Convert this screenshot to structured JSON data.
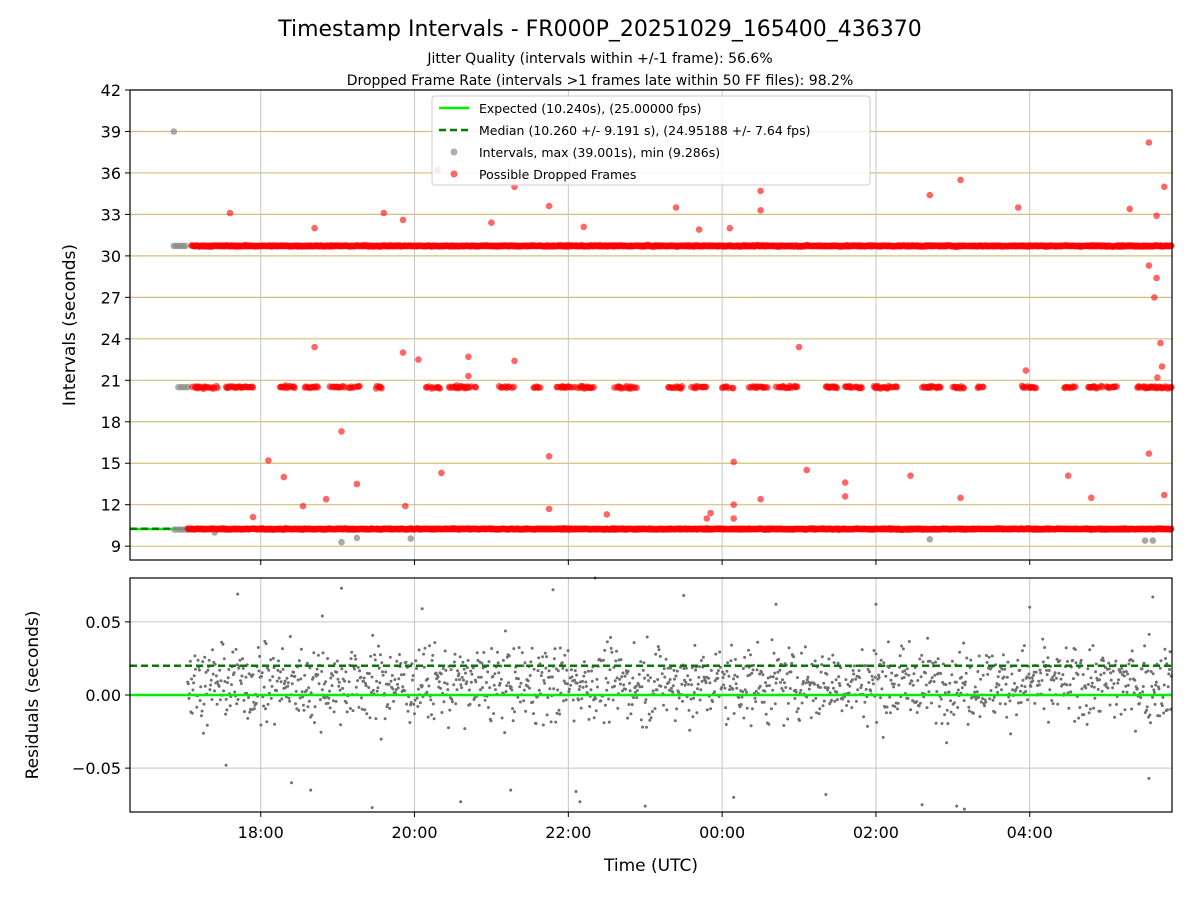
{
  "header": {
    "title": "Timestamp Intervals - FR000P_20251029_165400_436370",
    "subtitle_1": "Jitter Quality (intervals within +/-1 frame): 56.6%",
    "subtitle_2": "Dropped Frame Rate (intervals >1 frames late within 50 FF files): 98.2%"
  },
  "chart_data": [
    {
      "type": "scatter",
      "panel": "top",
      "ylabel": "Intervals (seconds)",
      "xlabel": "",
      "ylim": [
        8,
        42
      ],
      "xlim_hours": [
        16.3,
        29.85
      ],
      "yticks": [
        "9",
        "12",
        "15",
        "18",
        "21",
        "24",
        "27",
        "30",
        "33",
        "36",
        "39",
        "42"
      ],
      "ytick_values": [
        9,
        12,
        15,
        18,
        21,
        24,
        27,
        30,
        33,
        36,
        39,
        42
      ],
      "xtick_hours": [
        18,
        20,
        22,
        24,
        26,
        28
      ],
      "xtick_labels": [
        "18:00",
        "20:00",
        "22:00",
        "00:00",
        "02:00",
        "04:00"
      ],
      "horizontal_gridlines": "tan",
      "vertical_gridlines": true,
      "legend_position": "top-center",
      "legend": [
        "Expected (10.240s), (25.00000 fps)",
        "Median (10.260 +/- 9.191 s), (24.95188 +/- 7.64 fps)",
        "Intervals, max (39.001s), min (9.286s)",
        "Possible Dropped Frames"
      ],
      "expected_interval": 10.24,
      "median_interval": 10.26,
      "max_interval": 39.001,
      "min_interval": 9.286,
      "bands": {
        "base": 10.24,
        "double": 20.5,
        "triple": 30.72
      },
      "points_normal": [
        {
          "x": 16.87,
          "y": 39.0
        },
        {
          "x": 16.87,
          "y": 30.72
        },
        {
          "x": 16.9,
          "y": 30.72
        },
        {
          "x": 16.93,
          "y": 30.72
        },
        {
          "x": 16.96,
          "y": 30.72
        },
        {
          "x": 16.99,
          "y": 30.72
        },
        {
          "x": 17.02,
          "y": 30.72
        },
        {
          "x": 16.93,
          "y": 20.5
        },
        {
          "x": 16.97,
          "y": 20.5
        },
        {
          "x": 17.01,
          "y": 20.5
        },
        {
          "x": 17.05,
          "y": 20.5
        },
        {
          "x": 16.88,
          "y": 10.2
        },
        {
          "x": 16.93,
          "y": 10.2
        },
        {
          "x": 16.97,
          "y": 10.2
        },
        {
          "x": 17.01,
          "y": 10.2
        },
        {
          "x": 17.05,
          "y": 10.2
        },
        {
          "x": 19.05,
          "y": 9.29
        },
        {
          "x": 19.25,
          "y": 9.6
        },
        {
          "x": 19.95,
          "y": 9.55
        },
        {
          "x": 26.7,
          "y": 9.5
        },
        {
          "x": 29.5,
          "y": 9.4
        },
        {
          "x": 29.6,
          "y": 9.4
        },
        {
          "x": 17.4,
          "y": 10.0
        }
      ],
      "points_dropped": [
        {
          "x": 17.6,
          "y": 33.1
        },
        {
          "x": 18.7,
          "y": 32.0
        },
        {
          "x": 19.6,
          "y": 33.1
        },
        {
          "x": 19.85,
          "y": 32.6
        },
        {
          "x": 20.3,
          "y": 36.2
        },
        {
          "x": 21.0,
          "y": 32.4
        },
        {
          "x": 21.3,
          "y": 35.0
        },
        {
          "x": 21.75,
          "y": 33.6
        },
        {
          "x": 22.2,
          "y": 32.1
        },
        {
          "x": 23.4,
          "y": 33.5
        },
        {
          "x": 23.7,
          "y": 31.9
        },
        {
          "x": 24.1,
          "y": 32.0
        },
        {
          "x": 24.5,
          "y": 34.7
        },
        {
          "x": 24.5,
          "y": 33.3
        },
        {
          "x": 26.7,
          "y": 34.4
        },
        {
          "x": 27.1,
          "y": 35.5
        },
        {
          "x": 27.85,
          "y": 33.5
        },
        {
          "x": 29.3,
          "y": 33.4
        },
        {
          "x": 29.55,
          "y": 38.2
        },
        {
          "x": 29.75,
          "y": 35.0
        },
        {
          "x": 29.65,
          "y": 32.9
        },
        {
          "x": 29.55,
          "y": 29.3
        },
        {
          "x": 29.62,
          "y": 27.0
        },
        {
          "x": 29.65,
          "y": 28.4
        },
        {
          "x": 29.7,
          "y": 23.7
        },
        {
          "x": 29.72,
          "y": 22.0
        },
        {
          "x": 29.66,
          "y": 21.2
        },
        {
          "x": 18.7,
          "y": 23.4
        },
        {
          "x": 19.85,
          "y": 23.0
        },
        {
          "x": 20.05,
          "y": 22.5
        },
        {
          "x": 20.7,
          "y": 22.7
        },
        {
          "x": 20.7,
          "y": 21.3
        },
        {
          "x": 21.3,
          "y": 22.4
        },
        {
          "x": 25.0,
          "y": 23.4
        },
        {
          "x": 27.95,
          "y": 21.7
        },
        {
          "x": 19.05,
          "y": 17.3
        },
        {
          "x": 18.1,
          "y": 15.2
        },
        {
          "x": 18.3,
          "y": 14.0
        },
        {
          "x": 19.25,
          "y": 13.5
        },
        {
          "x": 20.35,
          "y": 14.3
        },
        {
          "x": 21.75,
          "y": 15.5
        },
        {
          "x": 24.15,
          "y": 15.1
        },
        {
          "x": 25.1,
          "y": 14.5
        },
        {
          "x": 25.6,
          "y": 13.6
        },
        {
          "x": 25.6,
          "y": 12.6
        },
        {
          "x": 26.45,
          "y": 14.1
        },
        {
          "x": 28.5,
          "y": 14.1
        },
        {
          "x": 29.55,
          "y": 15.7
        },
        {
          "x": 29.75,
          "y": 12.7
        },
        {
          "x": 18.55,
          "y": 11.9
        },
        {
          "x": 18.85,
          "y": 12.4
        },
        {
          "x": 19.88,
          "y": 11.9
        },
        {
          "x": 21.75,
          "y": 11.7
        },
        {
          "x": 22.5,
          "y": 11.3
        },
        {
          "x": 23.85,
          "y": 11.4
        },
        {
          "x": 24.15,
          "y": 12.0
        },
        {
          "x": 24.5,
          "y": 12.4
        },
        {
          "x": 27.1,
          "y": 12.5
        },
        {
          "x": 28.8,
          "y": 12.5
        },
        {
          "x": 17.9,
          "y": 11.1
        },
        {
          "x": 23.8,
          "y": 11.0
        },
        {
          "x": 24.15,
          "y": 11.0
        }
      ]
    },
    {
      "type": "scatter",
      "panel": "bottom",
      "xlabel": "Time (UTC)",
      "ylabel": "Residuals (seconds)",
      "ylim": [
        -0.08,
        0.08
      ],
      "yticks": [
        "0.05",
        "0.00",
        "−0.05"
      ],
      "ytick_values": [
        0.05,
        0.0,
        -0.05
      ],
      "xtick_hours": [
        18,
        20,
        22,
        24,
        26,
        28
      ],
      "xtick_labels": [
        "18:00",
        "20:00",
        "22:00",
        "00:00",
        "02:00",
        "04:00"
      ],
      "expected_residual": 0.0,
      "median_residual": 0.02,
      "residual_spread": 0.018,
      "outliers": [
        {
          "x": 17.7,
          "y": 0.069
        },
        {
          "x": 18.8,
          "y": 0.054
        },
        {
          "x": 19.05,
          "y": 0.073
        },
        {
          "x": 20.1,
          "y": 0.059
        },
        {
          "x": 21.8,
          "y": 0.072
        },
        {
          "x": 22.35,
          "y": 0.08
        },
        {
          "x": 23.5,
          "y": 0.068
        },
        {
          "x": 24.7,
          "y": 0.062
        },
        {
          "x": 26.0,
          "y": 0.062
        },
        {
          "x": 28.0,
          "y": 0.06
        },
        {
          "x": 29.6,
          "y": 0.067
        },
        {
          "x": 17.55,
          "y": -0.048
        },
        {
          "x": 18.4,
          "y": -0.06
        },
        {
          "x": 18.65,
          "y": -0.065
        },
        {
          "x": 19.45,
          "y": -0.077
        },
        {
          "x": 20.6,
          "y": -0.073
        },
        {
          "x": 21.25,
          "y": -0.065
        },
        {
          "x": 22.1,
          "y": -0.066
        },
        {
          "x": 22.15,
          "y": -0.073
        },
        {
          "x": 23.0,
          "y": -0.076
        },
        {
          "x": 24.15,
          "y": -0.07
        },
        {
          "x": 25.35,
          "y": -0.068
        },
        {
          "x": 26.6,
          "y": -0.075
        },
        {
          "x": 27.05,
          "y": -0.076
        },
        {
          "x": 27.15,
          "y": -0.078
        },
        {
          "x": 29.55,
          "y": -0.057
        }
      ]
    }
  ],
  "colors": {
    "expected": "#00ee00",
    "median": "#007a00",
    "normal_points": "#8c8c8c",
    "dropped_points": "#ff0000",
    "grid_h_top": "#d2c07a",
    "grid": "#c4c4c4",
    "residual_points": "#707070"
  }
}
